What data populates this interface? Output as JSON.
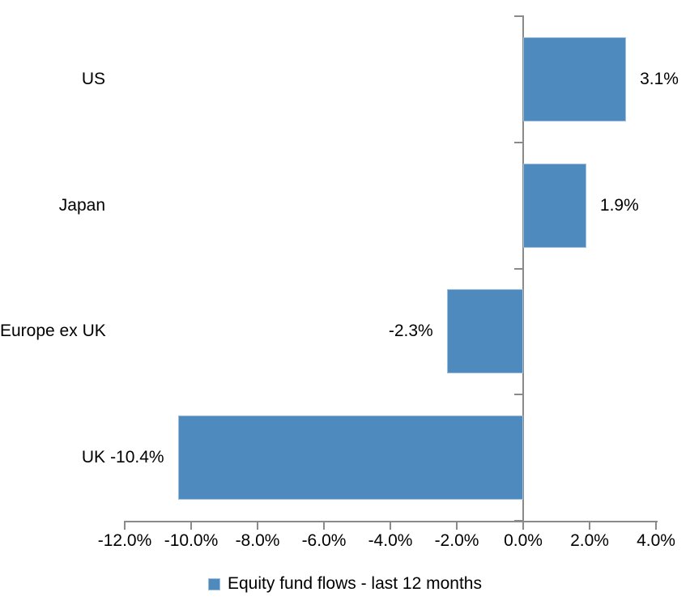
{
  "chart_data": {
    "type": "bar",
    "orientation": "horizontal",
    "title": "",
    "series_name": "Equity fund flows - last 12 months",
    "categories": [
      "US",
      "Japan",
      "Europe ex UK",
      "UK"
    ],
    "values": [
      3.1,
      1.9,
      -2.3,
      -10.4
    ],
    "data_labels": [
      "3.1%",
      "1.9%",
      "-2.3%",
      "-10.4%"
    ],
    "xlim": [
      -12,
      4
    ],
    "x_ticks": [
      -12,
      -10,
      -8,
      -6,
      -4,
      -2,
      0,
      2,
      4
    ],
    "x_tick_labels": [
      "-12.0%",
      "-10.0%",
      "-8.0%",
      "-6.0%",
      "-4.0%",
      "-2.0%",
      "0.0%",
      "2.0%",
      "4.0%"
    ],
    "grid": "off",
    "legend_position": "bottom-center",
    "bar_color": "#4e8abe",
    "bar_edge_color": "#9dbedc",
    "axis_color": "#8a8a8a",
    "text_color": "#000000",
    "background_color": "#ffffff"
  }
}
